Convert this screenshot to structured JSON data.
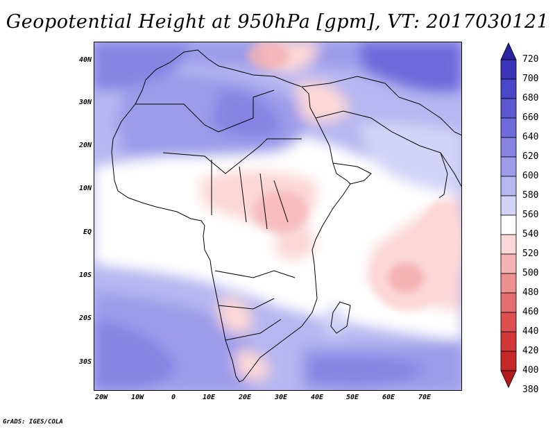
{
  "title": "Geopotential Height at 950hPa [gpm], VT: 2017030121",
  "credit": "GrADS: IGES/COLA",
  "map": {
    "projection": "latlon",
    "lon_range": [
      -20,
      80
    ],
    "lat_range": [
      -38,
      45
    ],
    "field": "geopotential height at 950hPa",
    "units": "gpm"
  },
  "lat_labels": [
    "40N",
    "30N",
    "20N",
    "10N",
    "EQ",
    "10S",
    "20S",
    "30S"
  ],
  "lon_labels": [
    "20W",
    "10W",
    "0",
    "10E",
    "20E",
    "30E",
    "40E",
    "50E",
    "60E",
    "70E"
  ],
  "colorbar": {
    "levels": [
      "720",
      "700",
      "680",
      "660",
      "640",
      "620",
      "600",
      "580",
      "560",
      "540",
      "520",
      "500",
      "480",
      "460",
      "440",
      "420",
      "400",
      "380"
    ],
    "colors": [
      "#2a23a0",
      "#3a34b8",
      "#4a46c8",
      "#5c58d2",
      "#6e6bda",
      "#8683e2",
      "#9d9bea",
      "#b7b6f0",
      "#d3d3f7",
      "#ffffff",
      "#fbd7d7",
      "#f5b2b2",
      "#ec9090",
      "#e46e6e",
      "#dc5050",
      "#d23838",
      "#c42828",
      "#b21b1b"
    ]
  }
}
